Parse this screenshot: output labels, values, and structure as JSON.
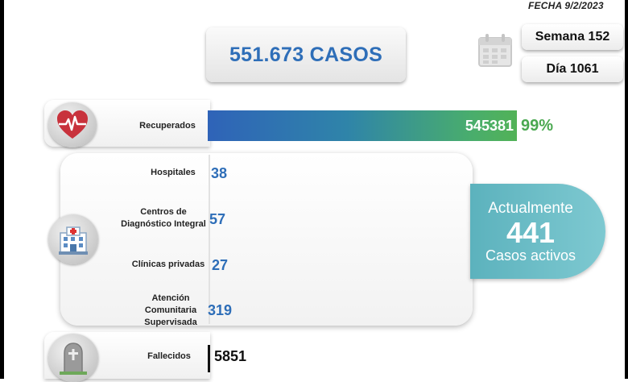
{
  "header": {
    "fecha": "FECHA 9/2/2023"
  },
  "total": {
    "casos": "551.673 CASOS"
  },
  "period": {
    "semana": "Semana 152",
    "dia": "Día 1061"
  },
  "recuperados": {
    "label": "Recuperados",
    "value": "545381",
    "percent": "99%"
  },
  "hospitalization": [
    {
      "label_lines": [
        "Hospitales"
      ],
      "value": "38"
    },
    {
      "label_lines": [
        "Centros de",
        "Diagnóstico Integral"
      ],
      "value": "57"
    },
    {
      "label_lines": [
        "Clínicas privadas"
      ],
      "value": "27"
    },
    {
      "label_lines": [
        "Atención",
        "Comunitaria",
        "Supervisada"
      ],
      "value": "319"
    }
  ],
  "activos": {
    "top": "Actualmente",
    "value": "441",
    "bottom": "Casos activos"
  },
  "fallecidos": {
    "label": "Fallecidos",
    "value": "5851"
  },
  "icons": {
    "calendar": "calendar-icon",
    "heart": "heart-pulse-icon",
    "hospital": "hospital-icon",
    "tombstone": "tombstone-icon"
  },
  "colors": {
    "blue_text": "#2e6eb8",
    "green_pct": "#4aa850",
    "teal_active": "#5cb2bd"
  }
}
